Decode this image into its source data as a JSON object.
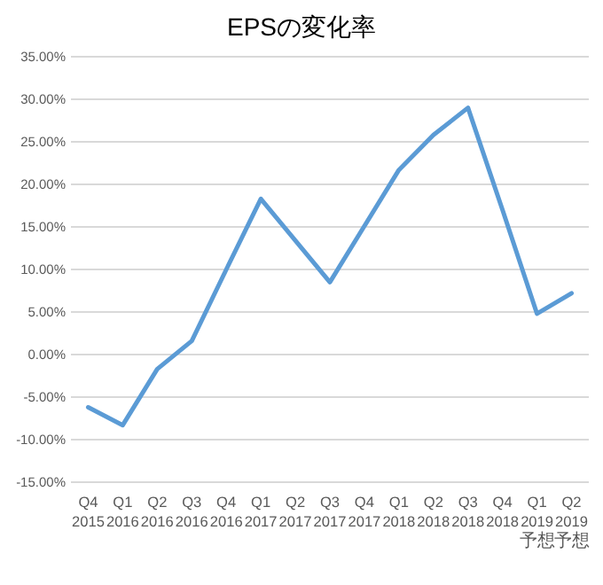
{
  "chart_data": {
    "type": "line",
    "title": "EPSの変化率",
    "categories": [
      "Q4\n2015",
      "Q1\n2016",
      "Q2\n2016",
      "Q3\n2016",
      "Q4\n2016",
      "Q1\n2017",
      "Q2\n2017",
      "Q3\n2017",
      "Q4\n2017",
      "Q1\n2018",
      "Q2\n2018",
      "Q3\n2018",
      "Q4\n2018",
      "Q1\n2019\n予想",
      "Q2\n2019\n予想"
    ],
    "series": [
      {
        "color": "#5b9bd5",
        "values": [
          -6.2,
          -8.3,
          -1.7,
          1.6,
          10.0,
          18.3,
          13.4,
          8.5,
          15.1,
          21.7,
          25.8,
          29.0,
          17.0,
          4.8,
          7.2
        ]
      }
    ],
    "ylim": [
      -15,
      35
    ],
    "yticks": [
      {
        "value": -15,
        "label": "-15.00%"
      },
      {
        "value": -10,
        "label": "-10.00%"
      },
      {
        "value": -5,
        "label": "-5.00%"
      },
      {
        "value": 0,
        "label": "0.00%"
      },
      {
        "value": 5,
        "label": "5.00%"
      },
      {
        "value": 10,
        "label": "10.00%"
      },
      {
        "value": 15,
        "label": "15.00%"
      },
      {
        "value": 20,
        "label": "20.00%"
      },
      {
        "value": 25,
        "label": "25.00%"
      },
      {
        "value": 30,
        "label": "30.00%"
      },
      {
        "value": 35,
        "label": "35.00%"
      }
    ],
    "grid": "y",
    "marker": "none",
    "line_style": "solid"
  }
}
